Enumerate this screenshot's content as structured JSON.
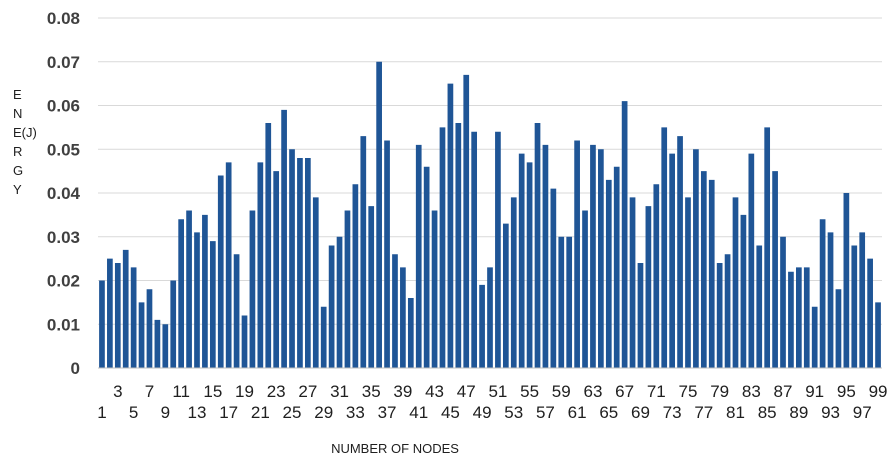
{
  "chart_data": {
    "type": "bar",
    "title": "",
    "xlabel": "NUMBER OF NODES",
    "ylabel": "ENERGY",
    "ylabel_lines": [
      "E",
      "N",
      "E(J)",
      "R",
      "G",
      "Y"
    ],
    "ylim": [
      0,
      0.08
    ],
    "yticks": [
      "0",
      "0.01",
      "0.02",
      "0.03",
      "0.04",
      "0.05",
      "0.06",
      "0.07",
      "0.08"
    ],
    "grid": true,
    "legend": "none",
    "bar_color": "#1f5596",
    "categories": [
      1,
      2,
      3,
      4,
      5,
      6,
      7,
      8,
      9,
      10,
      11,
      12,
      13,
      14,
      15,
      16,
      17,
      18,
      19,
      20,
      21,
      22,
      23,
      24,
      25,
      26,
      27,
      28,
      29,
      30,
      31,
      32,
      33,
      34,
      35,
      36,
      37,
      38,
      39,
      40,
      41,
      42,
      43,
      44,
      45,
      46,
      47,
      48,
      49,
      50,
      51,
      52,
      53,
      54,
      55,
      56,
      57,
      58,
      59,
      60,
      61,
      62,
      63,
      64,
      65,
      66,
      67,
      68,
      69,
      70,
      71,
      72,
      73,
      74,
      75,
      76,
      77,
      78,
      79,
      80,
      81,
      82,
      83,
      84,
      85,
      86,
      87,
      88,
      89,
      90,
      91,
      92,
      93,
      94,
      95,
      96,
      97,
      98,
      99
    ],
    "values": [
      0.02,
      0.025,
      0.024,
      0.027,
      0.023,
      0.015,
      0.018,
      0.011,
      0.01,
      0.02,
      0.034,
      0.036,
      0.031,
      0.035,
      0.029,
      0.044,
      0.047,
      0.026,
      0.012,
      0.036,
      0.047,
      0.056,
      0.045,
      0.059,
      0.05,
      0.048,
      0.048,
      0.039,
      0.014,
      0.028,
      0.03,
      0.036,
      0.042,
      0.053,
      0.037,
      0.07,
      0.052,
      0.026,
      0.023,
      0.016,
      0.051,
      0.046,
      0.036,
      0.055,
      0.065,
      0.056,
      0.067,
      0.054,
      0.019,
      0.023,
      0.054,
      0.033,
      0.039,
      0.049,
      0.047,
      0.056,
      0.051,
      0.041,
      0.03,
      0.03,
      0.052,
      0.036,
      0.051,
      0.05,
      0.043,
      0.046,
      0.061,
      0.039,
      0.024,
      0.037,
      0.042,
      0.055,
      0.049,
      0.053,
      0.039,
      0.05,
      0.045,
      0.043,
      0.024,
      0.026,
      0.039,
      0.035,
      0.049,
      0.028,
      0.055,
      0.045,
      0.03,
      0.022,
      0.023,
      0.023,
      0.014,
      0.034,
      0.031,
      0.018,
      0.04,
      0.028,
      0.031,
      0.025,
      0.015
    ]
  }
}
